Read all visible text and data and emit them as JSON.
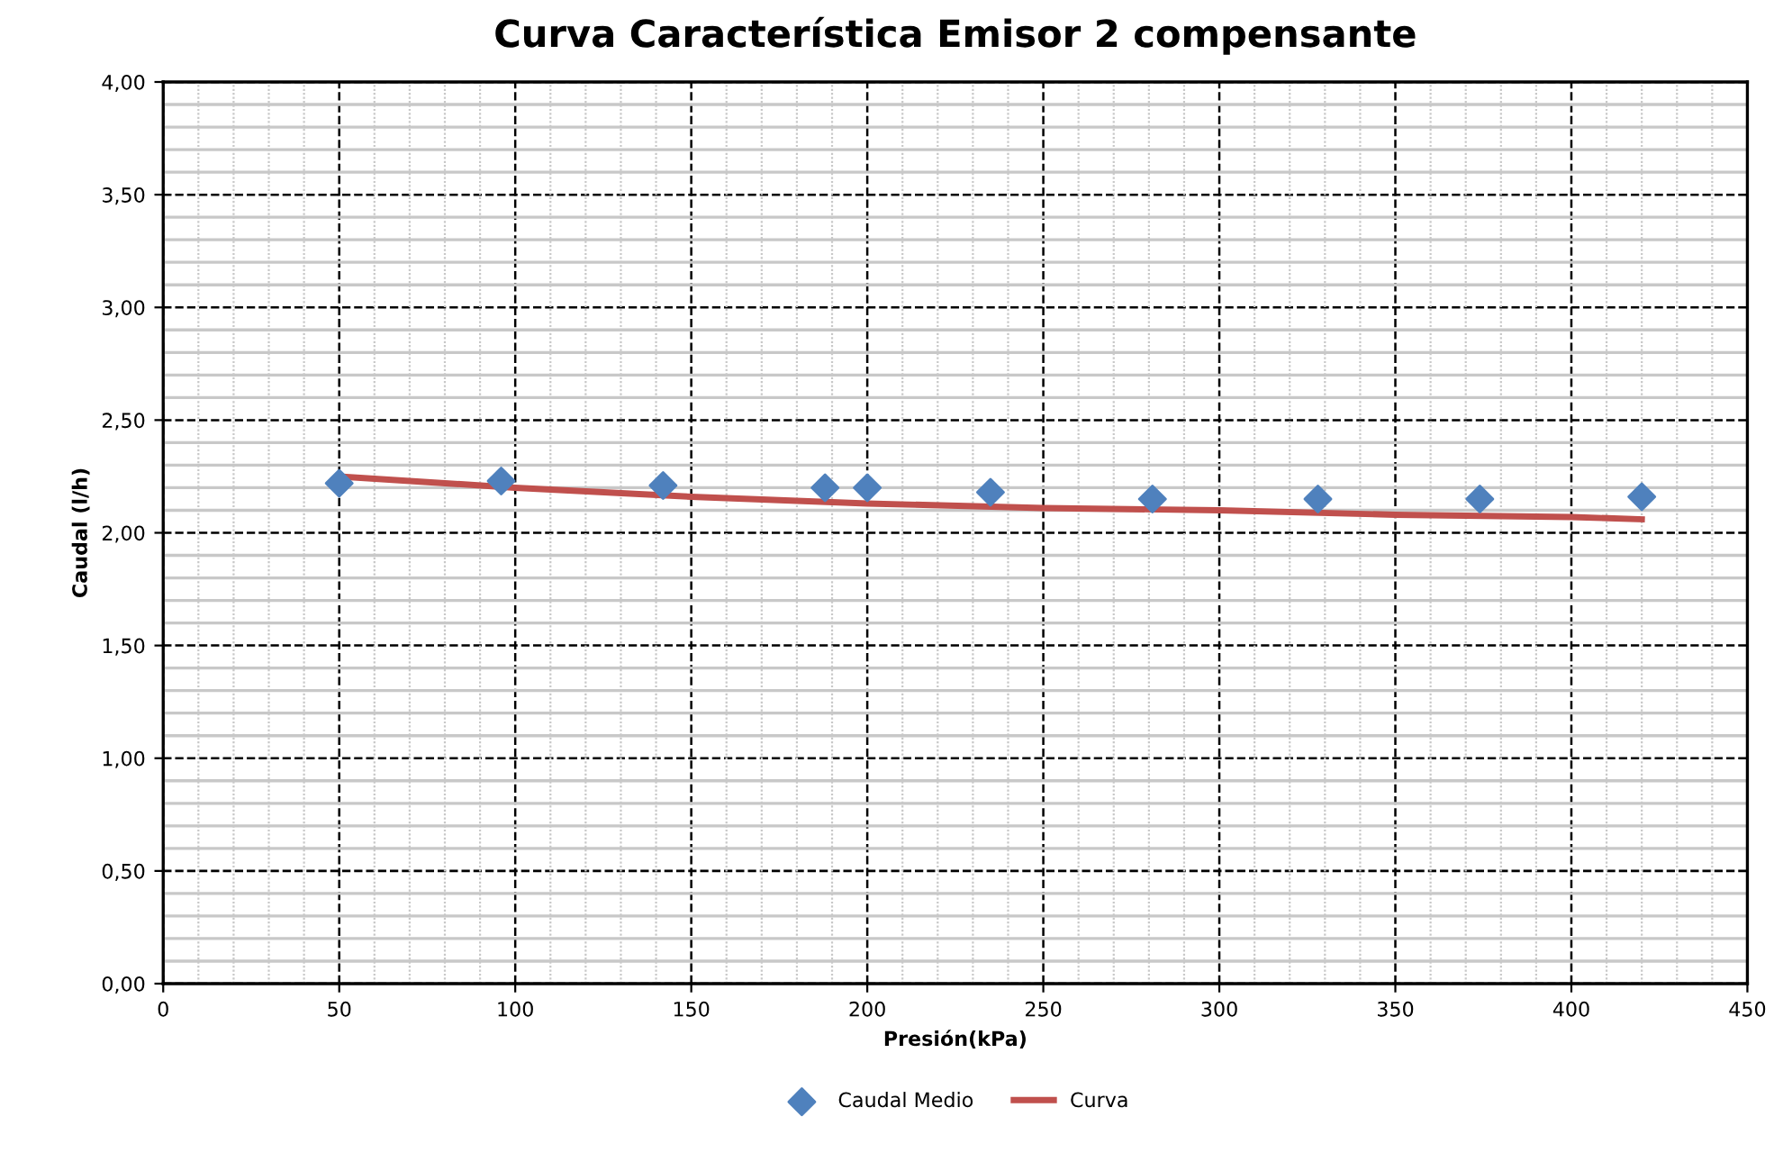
{
  "chart_data": {
    "type": "scatter",
    "title": "Curva Característica Emisor 2 compensante",
    "xlabel": "Presión(kPa)",
    "ylabel": "Caudal (l/h)",
    "series": [
      {
        "name": "Caudal Medio",
        "marker": "diamond",
        "color": "#4f81bd",
        "x": [
          50,
          96,
          142,
          188,
          200,
          235,
          281,
          328,
          374,
          420
        ],
        "values": [
          2.22,
          2.23,
          2.21,
          2.2,
          2.2,
          2.18,
          2.15,
          2.15,
          2.15,
          2.16
        ]
      },
      {
        "name": "Curva",
        "type": "line",
        "marker": "none",
        "line_style": "solid",
        "color": "#c0504d",
        "x": [
          50,
          100,
          150,
          200,
          250,
          300,
          350,
          400,
          420
        ],
        "values": [
          2.25,
          2.2,
          2.16,
          2.13,
          2.11,
          2.1,
          2.08,
          2.07,
          2.06
        ]
      }
    ],
    "xlim": [
      0,
      450
    ],
    "xticks": [
      0,
      50,
      100,
      150,
      200,
      250,
      300,
      350,
      400,
      450
    ],
    "ylim": [
      0,
      4
    ],
    "yticks": [
      {
        "value": 0,
        "label": "0,00"
      },
      {
        "value": 0.5,
        "label": "0,50"
      },
      {
        "value": 1,
        "label": "1,00"
      },
      {
        "value": 1.5,
        "label": "1,50"
      },
      {
        "value": 2,
        "label": "2,00"
      },
      {
        "value": 2.5,
        "label": "2,50"
      },
      {
        "value": 3,
        "label": "3,00"
      },
      {
        "value": 3.5,
        "label": "3,50"
      },
      {
        "value": 4,
        "label": "4,00"
      }
    ],
    "grid": true,
    "legend": "bottom"
  }
}
